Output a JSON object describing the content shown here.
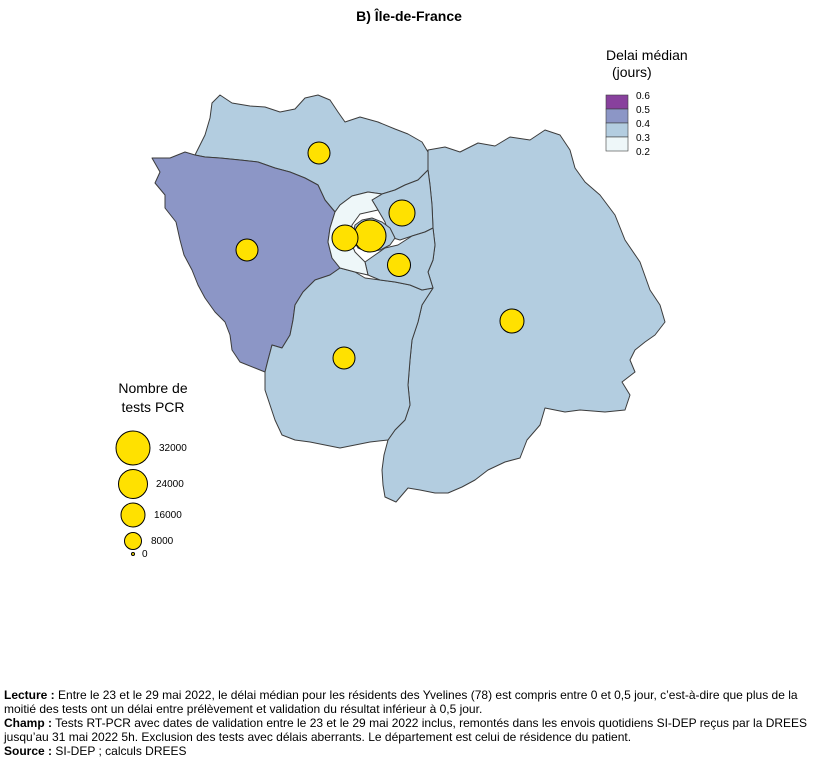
{
  "title": "B) Île-de-France",
  "colors": {
    "0.2-0.3": "#eef7f9",
    "0.3-0.4": "#b3cde0",
    "0.4-0.5": "#8c96c6",
    "0.5-0.6": "#88419d",
    "bubble": "#ffe100",
    "border": "#3c3c3c"
  },
  "legend_delay": {
    "title_line1": "Delai médian",
    "title_line2": "(jours)",
    "ticks": [
      "0.6",
      "0.5",
      "0.4",
      "0.3",
      "0.2"
    ]
  },
  "legend_size": {
    "title_line1": "Nombre de",
    "title_line2": "tests PCR",
    "entries": [
      {
        "label": "32000",
        "value": 32000
      },
      {
        "label": "24000",
        "value": 24000
      },
      {
        "label": "16000",
        "value": 16000
      },
      {
        "label": "8000",
        "value": 8000
      },
      {
        "label": "0",
        "value": 0
      }
    ]
  },
  "footnote": {
    "lecture_label": "Lecture :",
    "lecture_text": " Entre le 23 et le 29 mai 2022, le délai médian pour les résidents des Yvelines (78) est compris entre 0 et 0,5 jour, c’est-à-dire que plus de la moitié des tests ont un délai entre prélèvement et validation du résultat inférieur à 0,5 jour.",
    "champ_label": "Champ :",
    "champ_text": " Tests RT-PCR avec dates de validation entre le 23 et le 29 mai 2022 inclus, remontés dans les envois quotidiens SI-DEP reçus par la DREES jusqu’au 31 mai 2022 5h. Exclusion des tests avec délais aberrants. Le département est celui de résidence du patient.",
    "source_label": "Source :",
    "source_text": " SI-DEP ; calculs DREES"
  }
}
